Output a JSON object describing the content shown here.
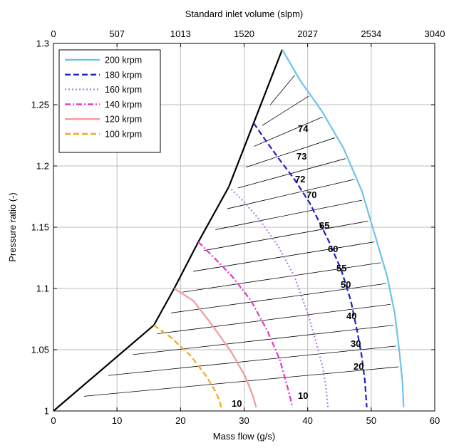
{
  "chart_data": {
    "type": "line",
    "title": "",
    "xlabel": "Mass flow (g/s)",
    "ylabel": "Pressure ratio (-)",
    "x2label": "Standard inlet volume (slpm)",
    "xlim": [
      0,
      60
    ],
    "ylim": [
      1,
      1.3
    ],
    "xticks": [
      0,
      10,
      20,
      30,
      40,
      50,
      60
    ],
    "yticks": [
      1,
      1.05,
      1.1,
      1.15,
      1.2,
      1.25,
      1.3
    ],
    "xtick_labels": [
      "0",
      "10",
      "20",
      "30",
      "40",
      "50",
      "60"
    ],
    "ytick_labels": [
      "1",
      "1.05",
      "1.1",
      "1.15",
      "1.2",
      "1.25",
      "1.3"
    ],
    "x2tick_labels": [
      "0",
      "507",
      "1013",
      "1520",
      "2027",
      "2534",
      "3040"
    ],
    "grid": true,
    "legend_position": "top-left",
    "series": [
      {
        "name": "200 krpm",
        "color": "#6ec3ea",
        "dash": "solid",
        "x": [
          36.0,
          38.8,
          42.2,
          45.6,
          48.5,
          50.8,
          52.5,
          53.7,
          54.4,
          54.9,
          55.1
        ],
        "y": [
          1.295,
          1.27,
          1.245,
          1.215,
          1.18,
          1.14,
          1.11,
          1.08,
          1.05,
          1.025,
          1.003
        ]
      },
      {
        "name": "180 krpm",
        "color": "#1f1fc8",
        "dash": "dashed",
        "x": [
          31.5,
          33.5,
          35.6,
          37.8,
          40.3,
          43.2,
          45.3,
          46.8,
          47.8,
          48.5,
          49.0,
          49.3
        ],
        "y": [
          1.235,
          1.22,
          1.205,
          1.19,
          1.17,
          1.14,
          1.115,
          1.09,
          1.065,
          1.045,
          1.025,
          1.003
        ]
      },
      {
        "name": "160 krpm",
        "color": "#b07fe6",
        "dash": "dotted",
        "x": [
          27.6,
          30.1,
          32.6,
          35.3,
          37.9,
          40.0,
          41.4,
          42.4,
          42.9,
          43.2
        ],
        "y": [
          1.183,
          1.17,
          1.155,
          1.135,
          1.11,
          1.08,
          1.055,
          1.035,
          1.018,
          1.003
        ]
      },
      {
        "name": "140 krpm",
        "color": "#e637c8",
        "dash": "dash-dot",
        "x": [
          22.8,
          25.3,
          28.1,
          31.1,
          33.7,
          35.6,
          36.7,
          37.3,
          37.6
        ],
        "y": [
          1.138,
          1.125,
          1.11,
          1.09,
          1.065,
          1.042,
          1.022,
          1.01,
          1.003
        ]
      },
      {
        "name": "120 krpm",
        "color": "#f29a9a",
        "dash": "solid",
        "x": [
          19.0,
          22.0,
          25.0,
          28.0,
          30.2,
          31.4,
          31.9
        ],
        "y": [
          1.1,
          1.09,
          1.07,
          1.048,
          1.028,
          1.012,
          1.003
        ]
      },
      {
        "name": "100 krpm",
        "color": "#f5a81c",
        "dash": "dashed",
        "x": [
          15.8,
          18.5,
          21.6,
          24.1,
          25.6,
          26.2,
          26.4
        ],
        "y": [
          1.07,
          1.06,
          1.045,
          1.028,
          1.015,
          1.007,
          1.003
        ]
      }
    ],
    "surge_line": {
      "color": "#000000",
      "x": [
        0,
        15.8,
        19.0,
        22.8,
        27.6,
        31.5,
        36.0
      ],
      "y": [
        1.0,
        1.07,
        1.1,
        1.138,
        1.183,
        1.235,
        1.295
      ]
    },
    "efficiency_labels": [
      {
        "text": "74",
        "x": 30.6,
        "y": 1.231
      },
      {
        "text": "73",
        "x": 30.6,
        "y": 1.208
      },
      {
        "text": "72",
        "x": 30.6,
        "y": 1.193
      },
      {
        "text": "70",
        "x": 30.6,
        "y": 1.178
      },
      {
        "text": "65",
        "x": 30.6,
        "y": 1.148
      },
      {
        "text": "60",
        "x": 30.6,
        "y": 1.132
      },
      {
        "text": "55",
        "x": 30.6,
        "y": 1.115
      },
      {
        "text": "50",
        "x": 30.6,
        "y": 1.103
      },
      {
        "text": "40",
        "x": 30.6,
        "y": 1.079
      },
      {
        "text": "30",
        "x": 30.6,
        "y": 1.055
      },
      {
        "text": "20",
        "x": 30.6,
        "y": 1.034
      },
      {
        "text": "10",
        "x": 30.6,
        "y": 1.02
      },
      {
        "text": "10",
        "x": 30.6,
        "y": 1.011
      }
    ]
  }
}
